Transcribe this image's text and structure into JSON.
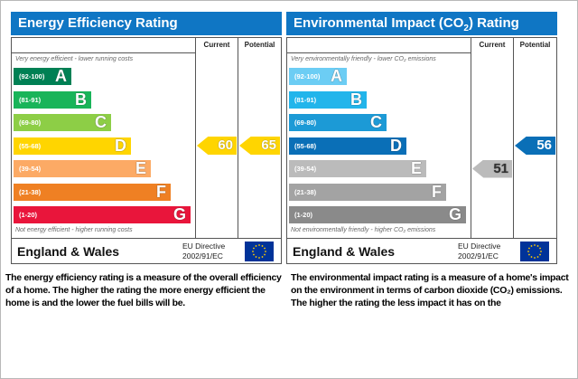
{
  "energy": {
    "title": "Energy Efficiency Rating",
    "col_current": "Current",
    "col_potential": "Potential",
    "top_note": "Very energy efficient - lower running costs",
    "bottom_note": "Not energy efficient - higher running costs",
    "bands": [
      {
        "range": "(92-100)",
        "letter": "A",
        "color": "#008054"
      },
      {
        "range": "(81-91)",
        "letter": "B",
        "color": "#19b459"
      },
      {
        "range": "(69-80)",
        "letter": "C",
        "color": "#8dce46"
      },
      {
        "range": "(55-68)",
        "letter": "D",
        "color": "#ffd500"
      },
      {
        "range": "(39-54)",
        "letter": "E",
        "color": "#fcaa65"
      },
      {
        "range": "(21-38)",
        "letter": "F",
        "color": "#ef8023"
      },
      {
        "range": "(1-20)",
        "letter": "G",
        "color": "#e9153b"
      }
    ],
    "current": {
      "value": "60",
      "band": "D",
      "color": "#ffd500"
    },
    "potential": {
      "value": "65",
      "band": "D",
      "color": "#ffd500"
    },
    "country": "England & Wales",
    "directive_line1": "EU Directive",
    "directive_line2": "2002/91/EC"
  },
  "environment": {
    "title_prefix": "Environmental Impact (CO",
    "title_sub": "2",
    "title_suffix": ") Rating",
    "col_current": "Current",
    "col_potential": "Potential",
    "top_note": "Very environmentally friendly - lower CO₂ emissions",
    "bottom_note": "Not environmentally friendly - higher CO₂ emissions",
    "bands": [
      {
        "range": "(92-100)",
        "letter": "A",
        "color": "#6ccdf4"
      },
      {
        "range": "(81-91)",
        "letter": "B",
        "color": "#22b5eb"
      },
      {
        "range": "(69-80)",
        "letter": "C",
        "color": "#1c9ad6"
      },
      {
        "range": "(55-68)",
        "letter": "D",
        "color": "#0a6fb7"
      },
      {
        "range": "(39-54)",
        "letter": "E",
        "color": "#bbbbbb"
      },
      {
        "range": "(21-38)",
        "letter": "F",
        "color": "#a3a3a3"
      },
      {
        "range": "(1-20)",
        "letter": "G",
        "color": "#8a8a8a"
      }
    ],
    "current": {
      "value": "51",
      "band": "E",
      "color": "#bbbbbb"
    },
    "potential": {
      "value": "56",
      "band": "D",
      "color": "#0a6fb7"
    },
    "country": "England & Wales",
    "directive_line1": "EU Directive",
    "directive_line2": "2002/91/EC"
  },
  "descriptions": {
    "energy": "The energy efficiency rating is a measure of the overall efficiency of a home. The higher the rating the more energy efficient the home is and the lower the fuel bills will be.",
    "environment": "The environmental impact rating is a measure of a home's impact on the environment in terms of carbon dioxide (CO₂) emissions. The higher the rating the less impact it has on the"
  },
  "icons": {
    "eu_flag": "eu-flag-icon"
  }
}
